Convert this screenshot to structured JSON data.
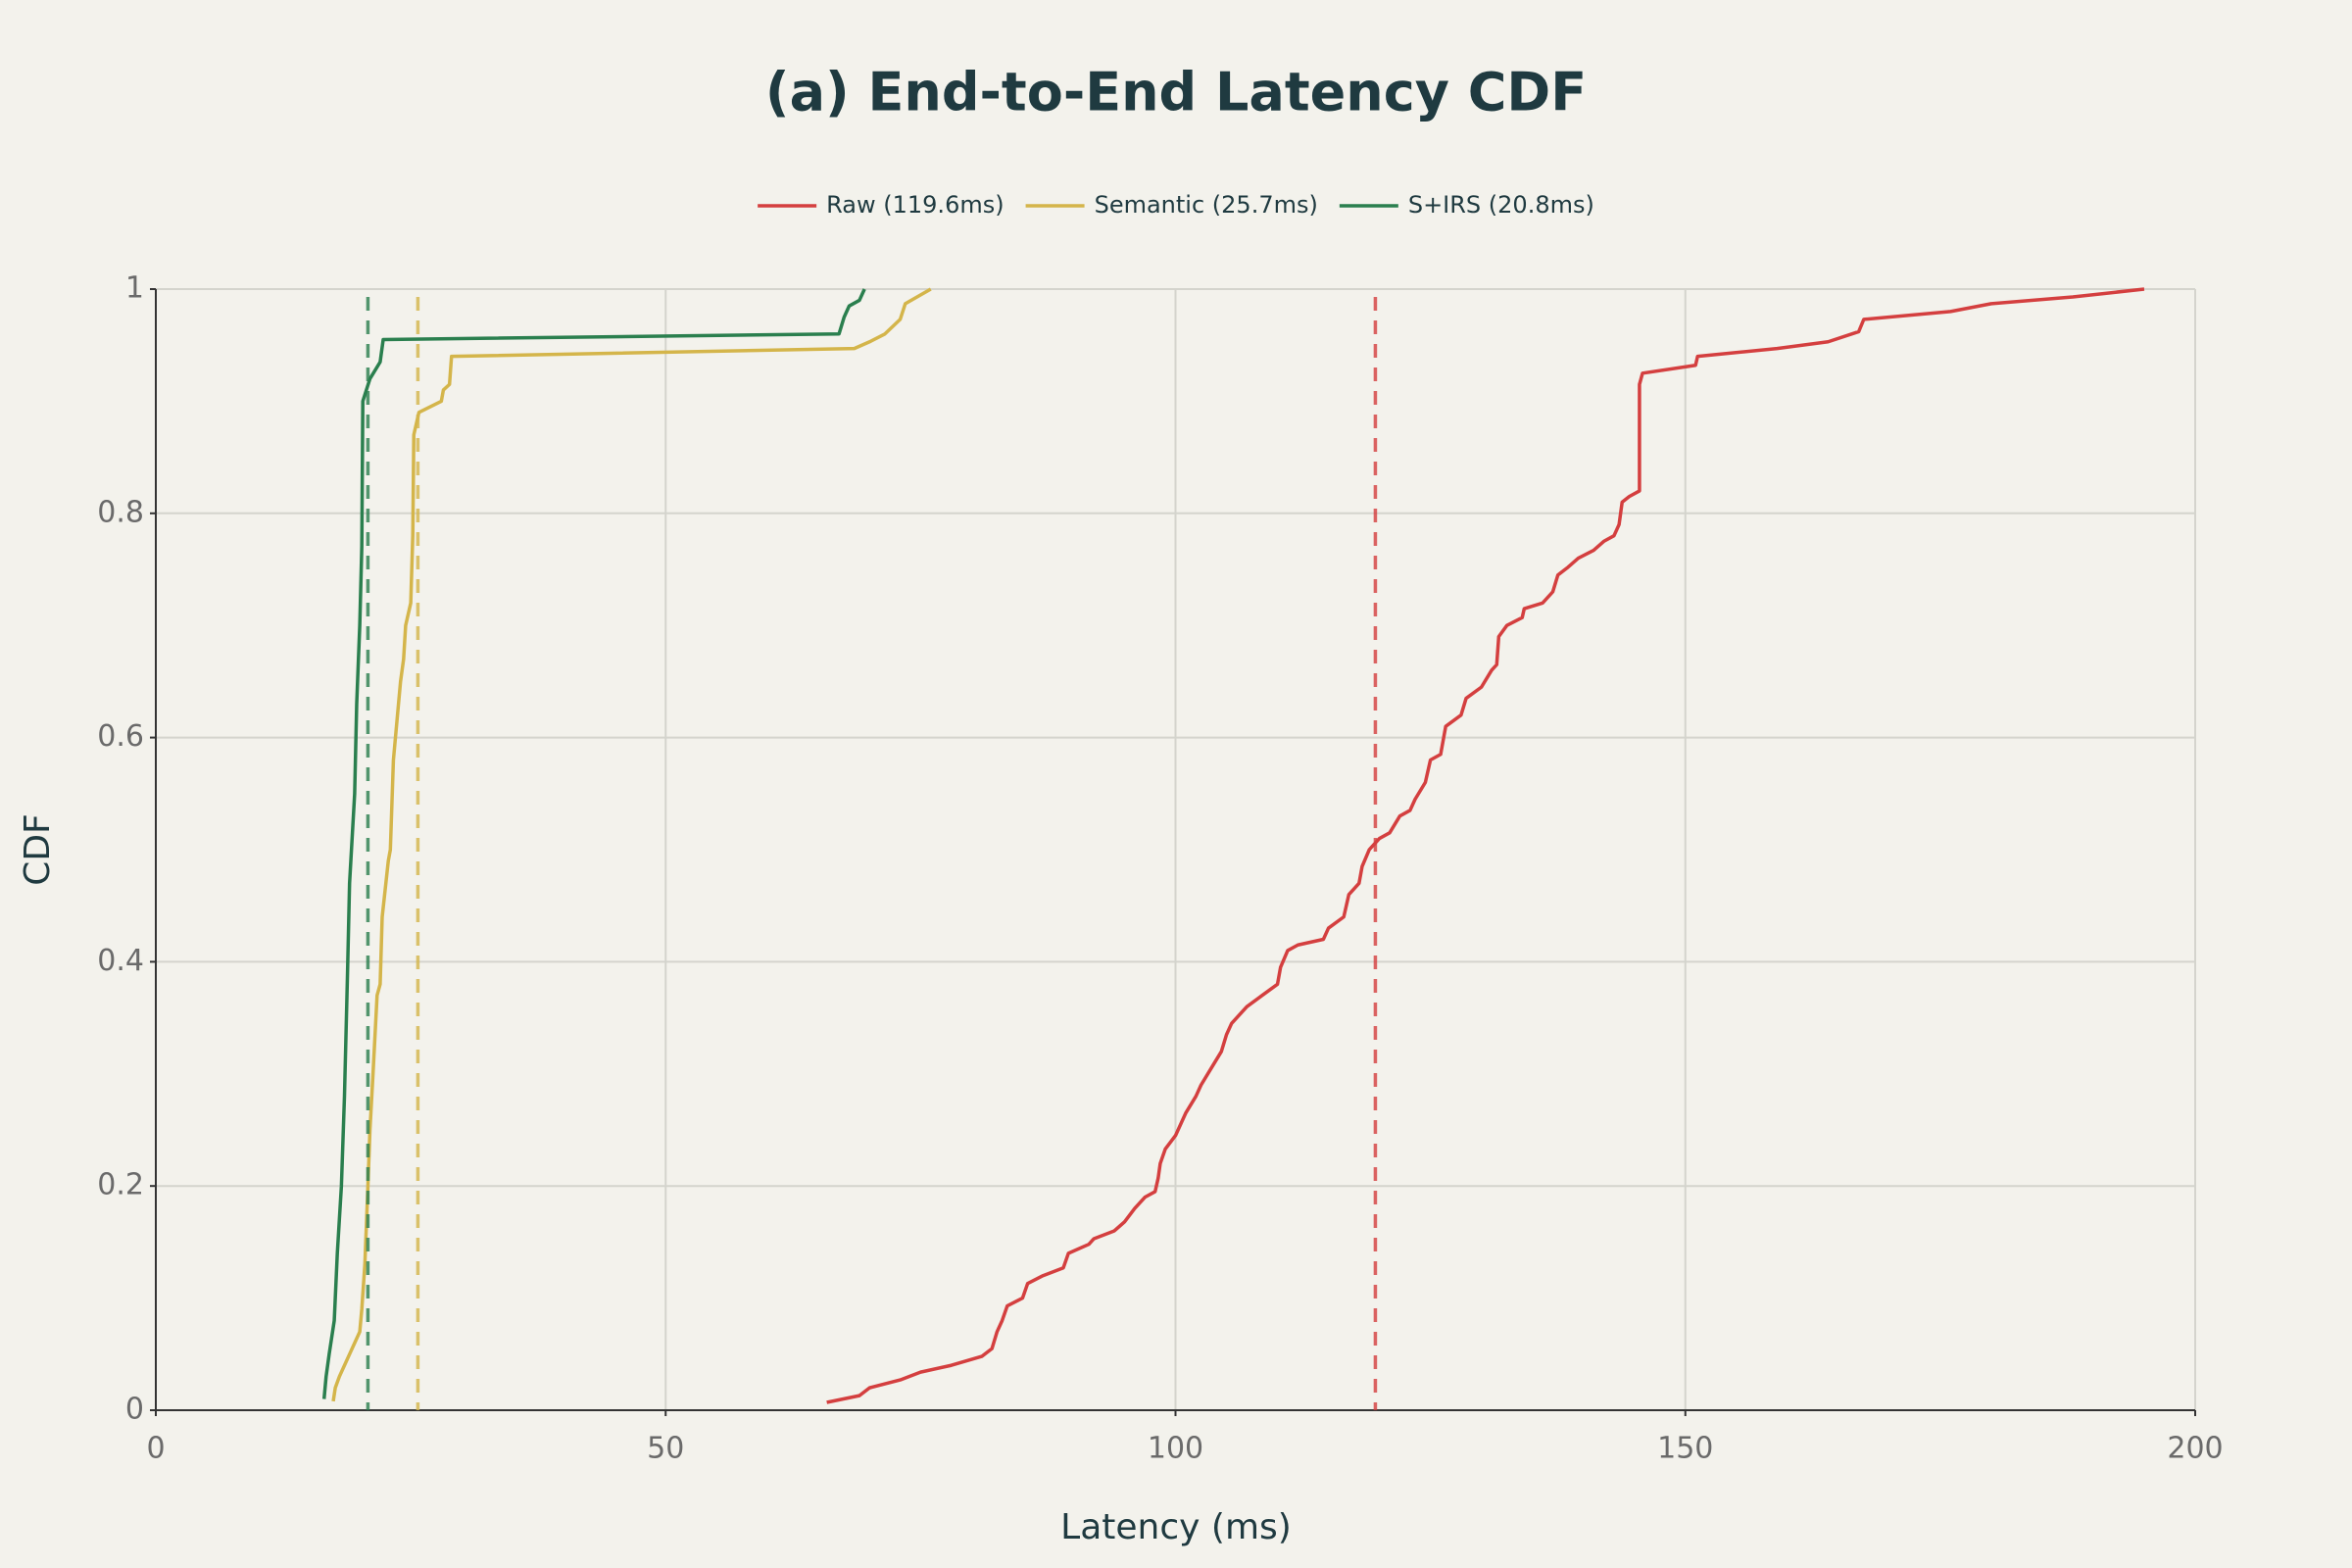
{
  "chart_data": {
    "type": "line",
    "title": "(a) End-to-End Latency CDF",
    "xlabel": "Latency (ms)",
    "ylabel": "CDF",
    "xlim": [
      0,
      200
    ],
    "xticks": [
      0,
      50,
      100,
      150,
      200
    ],
    "ylim": [
      0,
      1
    ],
    "yticks": [
      0,
      0.2,
      0.4,
      0.6,
      0.8,
      1
    ],
    "grid": true,
    "series": [
      {
        "name": "Raw (119.6ms)",
        "color": "#d43f3f",
        "mean": 119.6,
        "x": [
          65.8,
          69,
          70,
          73,
          75,
          78,
          81,
          82,
          82.5,
          83,
          83.5,
          85,
          85.5,
          87,
          89,
          89.5,
          91.5,
          92,
          94,
          95,
          96,
          97,
          98,
          98.3,
          98.5,
          99,
          100,
          101,
          102,
          102.5,
          103.5,
          104.5,
          105,
          105.5,
          107,
          108.5,
          110,
          110.3,
          111,
          112,
          114.5,
          115,
          116.5,
          117,
          118,
          118.3,
          119,
          120,
          121,
          122,
          123,
          123.5,
          124.5,
          125,
          126,
          126.5,
          128,
          128.5,
          130,
          131,
          131.5,
          131.7,
          132.5,
          134,
          134.2,
          136,
          137,
          137.5,
          138.5,
          139.5,
          141,
          142,
          143,
          143.5,
          143.8,
          144.5,
          145.5,
          145.5,
          145.8,
          151,
          151.2,
          159,
          164,
          167,
          167.5,
          176,
          180,
          188,
          195
        ],
        "values": [
          0.007,
          0.013,
          0.02,
          0.027,
          0.034,
          0.04,
          0.048,
          0.055,
          0.07,
          0.08,
          0.093,
          0.1,
          0.113,
          0.12,
          0.127,
          0.14,
          0.148,
          0.153,
          0.16,
          0.168,
          0.18,
          0.19,
          0.195,
          0.207,
          0.22,
          0.233,
          0.245,
          0.265,
          0.28,
          0.29,
          0.305,
          0.32,
          0.335,
          0.345,
          0.36,
          0.37,
          0.38,
          0.395,
          0.41,
          0.415,
          0.42,
          0.43,
          0.44,
          0.46,
          0.47,
          0.485,
          0.5,
          0.51,
          0.515,
          0.53,
          0.535,
          0.545,
          0.56,
          0.58,
          0.585,
          0.61,
          0.62,
          0.635,
          0.645,
          0.66,
          0.665,
          0.69,
          0.7,
          0.707,
          0.715,
          0.72,
          0.73,
          0.745,
          0.752,
          0.76,
          0.767,
          0.775,
          0.78,
          0.79,
          0.81,
          0.815,
          0.82,
          0.915,
          0.925,
          0.932,
          0.94,
          0.947,
          0.953,
          0.962,
          0.973,
          0.98,
          0.987,
          0.993,
          1.0
        ]
      },
      {
        "name": "Semantic (25.7ms)",
        "color": "#d4b54a",
        "mean": 25.7,
        "x": [
          17.4,
          17.6,
          18,
          18.5,
          19,
          19.5,
          20,
          20.2,
          20.5,
          20.8,
          21,
          21.3,
          21.7,
          22,
          22.2,
          22.8,
          23,
          23.3,
          23.7,
          24,
          24.3,
          24.5,
          25,
          25.2,
          25.3,
          25.8,
          28,
          28.2,
          28.8,
          29,
          68.5,
          70,
          71.5,
          73,
          73.5,
          76
        ],
        "values": [
          0.008,
          0.02,
          0.03,
          0.04,
          0.05,
          0.06,
          0.07,
          0.09,
          0.13,
          0.2,
          0.25,
          0.3,
          0.37,
          0.38,
          0.44,
          0.49,
          0.5,
          0.58,
          0.62,
          0.65,
          0.67,
          0.7,
          0.72,
          0.78,
          0.87,
          0.89,
          0.9,
          0.91,
          0.915,
          0.94,
          0.947,
          0.953,
          0.96,
          0.973,
          0.987,
          1.0
        ]
      },
      {
        "name": "S+IRS (20.8ms)",
        "color": "#2a7f4e",
        "mean": 20.8,
        "x": [
          16.5,
          16.7,
          17,
          17.5,
          17.8,
          18.2,
          18.5,
          18.8,
          19,
          19.5,
          19.7,
          20,
          20.2,
          20.3,
          21,
          22,
          22.3,
          67,
          67.5,
          68,
          69,
          69.5
        ],
        "values": [
          0.01,
          0.03,
          0.05,
          0.08,
          0.14,
          0.2,
          0.28,
          0.39,
          0.47,
          0.55,
          0.63,
          0.7,
          0.77,
          0.9,
          0.92,
          0.935,
          0.955,
          0.96,
          0.975,
          0.985,
          0.99,
          1.0
        ]
      }
    ]
  }
}
